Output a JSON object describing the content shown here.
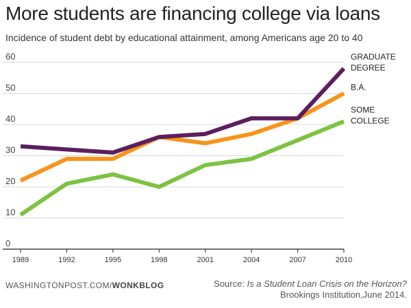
{
  "header": {
    "title": "More students are financing college via loans",
    "subtitle": "Incidence of student debt by educational attainment, among Americans age 20 to 40"
  },
  "footer": {
    "site_prefix": "WASHINGTONPOST.COM/",
    "site_section": "WONKBLOG",
    "source_label": "Source: ",
    "source_title": "Is a Student Loan Crisis on the Horizon?",
    "source_publisher": "Brookings Institution,June 2014."
  },
  "chart_data": {
    "type": "line",
    "title": "More students are financing college via loans",
    "subtitle": "Incidence of student debt by educational attainment, among Americans age 20 to 40",
    "xlabel": "",
    "ylabel": "",
    "x": [
      "1989",
      "1992",
      "1995",
      "1998",
      "2001",
      "2004",
      "2007",
      "2010"
    ],
    "ylim": [
      0,
      60
    ],
    "yticks": [
      0,
      10,
      20,
      30,
      40,
      50,
      60
    ],
    "grid": true,
    "legend": "direct labels at right end of lines",
    "series": [
      {
        "name": "GRADUATE DEGREE",
        "label_lines": [
          "GRADUATE",
          "DEGREE"
        ],
        "color": "#5b1f5e",
        "values": [
          33,
          32,
          31,
          36,
          37,
          42,
          42,
          58
        ]
      },
      {
        "name": "B.A.",
        "label_lines": [
          "B.A."
        ],
        "color": "#f7941d",
        "values": [
          22,
          29,
          29,
          36,
          34,
          37,
          42,
          50
        ]
      },
      {
        "name": "SOME COLLEGE",
        "label_lines": [
          "SOME",
          "COLLEGE"
        ],
        "color": "#7dc242",
        "values": [
          11,
          21,
          24,
          20,
          27,
          29,
          35,
          41
        ]
      }
    ]
  }
}
